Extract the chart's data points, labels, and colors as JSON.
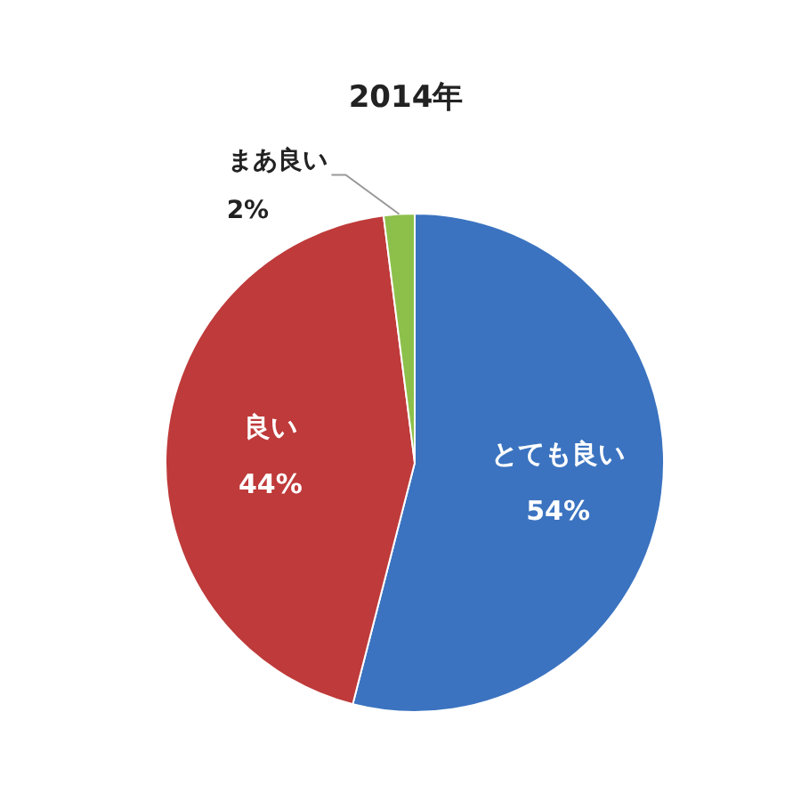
{
  "chart_data": {
    "type": "pie",
    "title": "2014年",
    "categories": [
      "とても良い",
      "良い",
      "まあ良い"
    ],
    "values": [
      54,
      44,
      2
    ],
    "value_labels": [
      "54%",
      "44%",
      "2%"
    ],
    "colors": [
      "#3b73c0",
      "#bf3a3a",
      "#8dc04b"
    ],
    "legend": false
  }
}
